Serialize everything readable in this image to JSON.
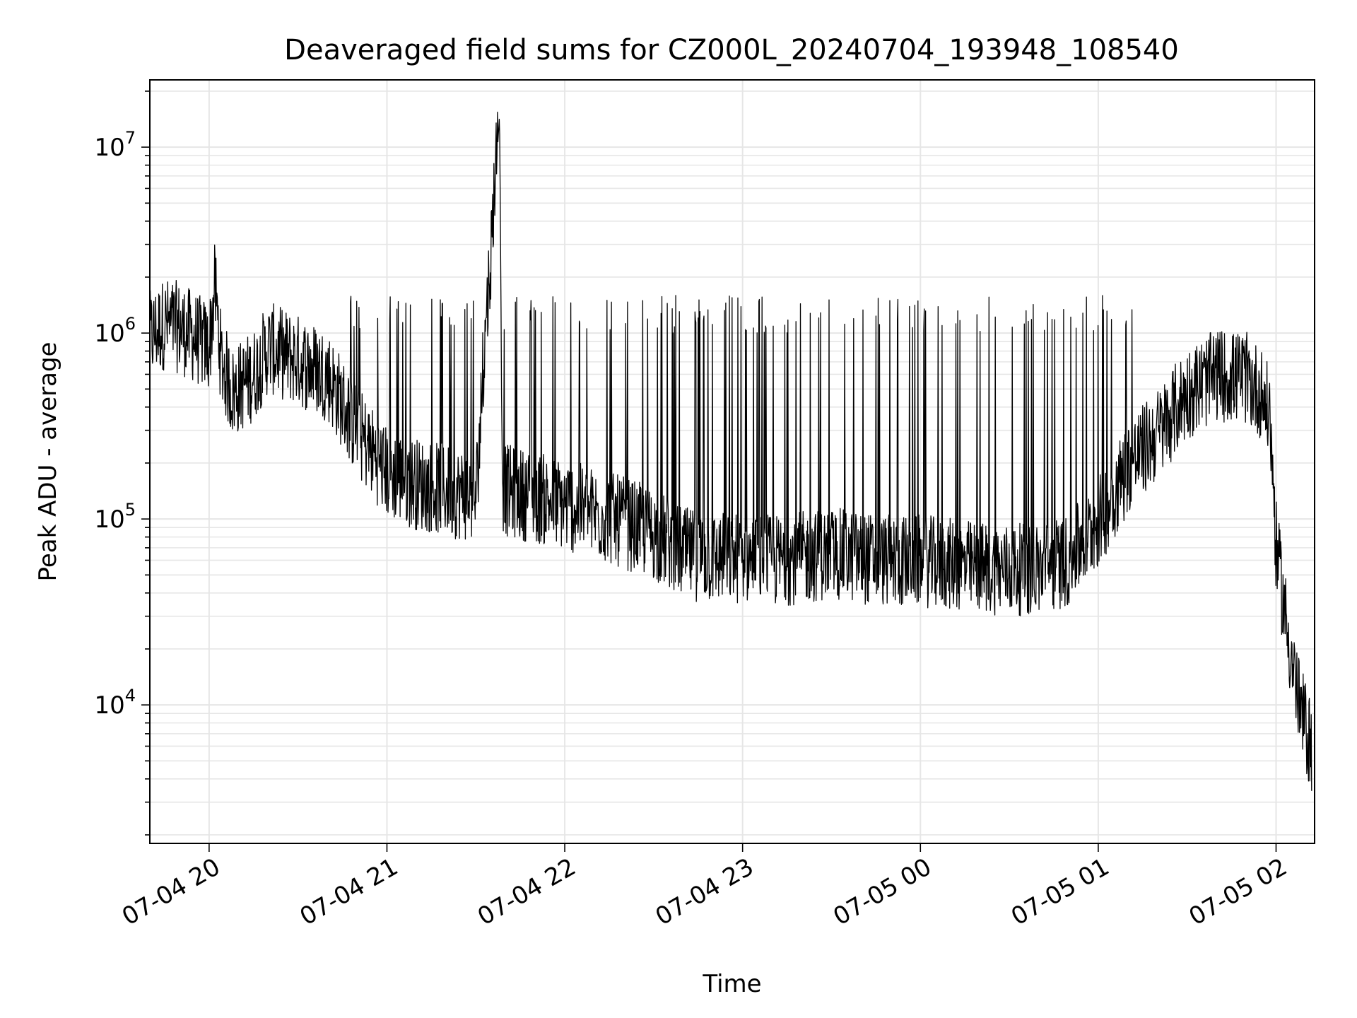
{
  "chart_data": {
    "type": "line",
    "title": "Deaveraged field sums for CZ000L_20240704_193948_108540",
    "xlabel": "Time",
    "ylabel": "Peak ADU - average",
    "yscale": "log",
    "ylim": [
      1800,
      23000000
    ],
    "xlim": [
      "2024-07-04 19:40",
      "2024-07-05 02:13"
    ],
    "grid": true,
    "line_color": "#000000",
    "grid_color": "#e6e6e6",
    "xticks": [
      {
        "t": "2024-07-04 20:00",
        "label": "07-04 20"
      },
      {
        "t": "2024-07-04 21:00",
        "label": "07-04 21"
      },
      {
        "t": "2024-07-04 22:00",
        "label": "07-04 22"
      },
      {
        "t": "2024-07-04 23:00",
        "label": "07-04 23"
      },
      {
        "t": "2024-07-05 00:00",
        "label": "07-05 00"
      },
      {
        "t": "2024-07-05 01:00",
        "label": "07-05 01"
      },
      {
        "t": "2024-07-05 02:00",
        "label": "07-05 02"
      }
    ],
    "yticks": [
      {
        "value": 10000,
        "base": "10",
        "exp": "4"
      },
      {
        "value": 100000,
        "base": "10",
        "exp": "5"
      },
      {
        "value": 1000000,
        "base": "10",
        "exp": "6"
      },
      {
        "value": 10000000,
        "base": "10",
        "exp": "7"
      }
    ],
    "series": [
      {
        "x": [
          "2024-07-04 19:40",
          "2024-07-04 19:45",
          "2024-07-04 19:50",
          "2024-07-04 19:55",
          "2024-07-04 20:00",
          "2024-07-04 20:02",
          "2024-07-04 20:04",
          "2024-07-04 20:08",
          "2024-07-04 20:15",
          "2024-07-04 20:20",
          "2024-07-04 20:30",
          "2024-07-04 20:40",
          "2024-07-04 20:50",
          "2024-07-04 21:00",
          "2024-07-04 21:10",
          "2024-07-04 21:20",
          "2024-07-04 21:30",
          "2024-07-04 21:38",
          "2024-07-04 21:39",
          "2024-07-04 21:40",
          "2024-07-04 21:50",
          "2024-07-04 22:00",
          "2024-07-04 22:10",
          "2024-07-04 22:20",
          "2024-07-04 22:30",
          "2024-07-04 22:40",
          "2024-07-04 22:50",
          "2024-07-04 23:00",
          "2024-07-04 23:10",
          "2024-07-04 23:20",
          "2024-07-04 23:30",
          "2024-07-04 23:40",
          "2024-07-04 23:50",
          "2024-07-05 00:00",
          "2024-07-05 00:10",
          "2024-07-05 00:20",
          "2024-07-05 00:30",
          "2024-07-05 00:40",
          "2024-07-05 00:50",
          "2024-07-05 01:00",
          "2024-07-05 01:10",
          "2024-07-05 01:20",
          "2024-07-05 01:30",
          "2024-07-05 01:40",
          "2024-07-05 01:50",
          "2024-07-05 01:55",
          "2024-07-05 01:58",
          "2024-07-05 02:00",
          "2024-07-05 02:04",
          "2024-07-05 02:08",
          "2024-07-05 02:12"
        ],
        "y": [
          800000,
          950000,
          900000,
          800000,
          700000,
          1500000,
          600000,
          400000,
          500000,
          700000,
          600000,
          500000,
          250000,
          150000,
          130000,
          120000,
          110000,
          15000000,
          130000,
          120000,
          110000,
          100000,
          90000,
          80000,
          70000,
          55000,
          52000,
          52000,
          50000,
          52000,
          55000,
          52000,
          50000,
          50000,
          48000,
          46000,
          45000,
          45000,
          50000,
          80000,
          160000,
          240000,
          400000,
          500000,
          480000,
          400000,
          300000,
          60000,
          20000,
          8000,
          5000
        ]
      }
    ]
  }
}
